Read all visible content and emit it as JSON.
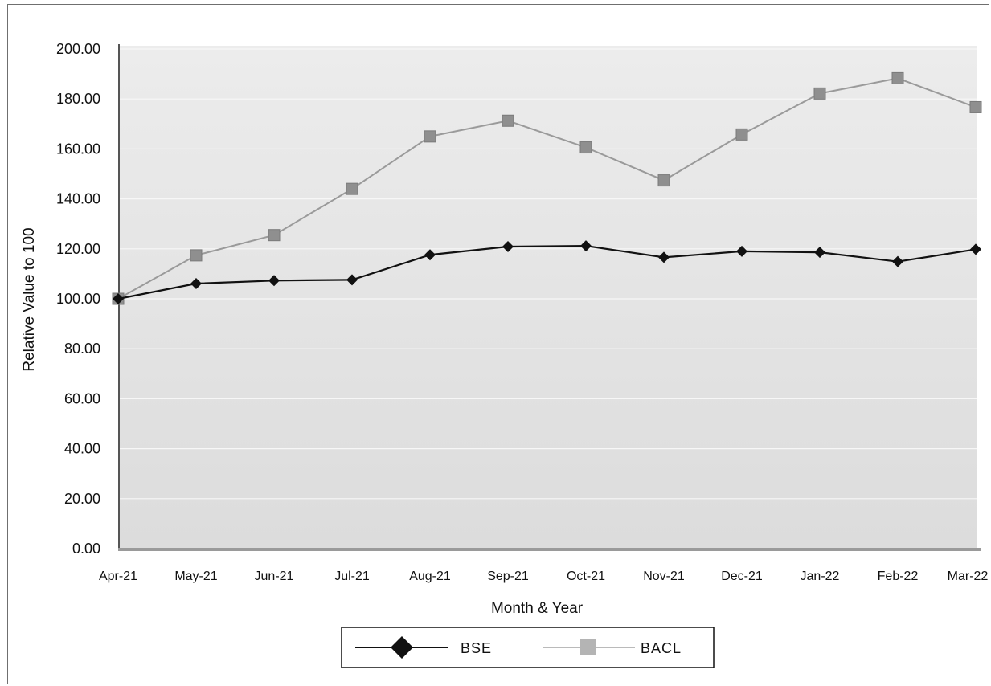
{
  "chart_data": {
    "type": "line",
    "title": "",
    "xlabel": "Month & Year",
    "ylabel": "Relative Value to 100",
    "categories": [
      "Apr-21",
      "May-21",
      "Jun-21",
      "Jul-21",
      "Aug-21",
      "Sep-21",
      "Oct-21",
      "Nov-21",
      "Dec-21",
      "Jan-22",
      "Feb-22",
      "Mar-22"
    ],
    "ylim": [
      0,
      200
    ],
    "yticks": [
      "0.00",
      "20.00",
      "40.00",
      "60.00",
      "80.00",
      "100.00",
      "120.00",
      "140.00",
      "160.00",
      "180.00",
      "200.00"
    ],
    "grid": true,
    "legend_position": "bottom",
    "series": [
      {
        "name": "BSE",
        "color": "#111111",
        "marker": "diamond",
        "values": [
          100.0,
          106.1,
          107.3,
          107.6,
          117.6,
          120.9,
          121.2,
          116.6,
          119.0,
          118.6,
          114.9,
          119.8
        ]
      },
      {
        "name": "BACL",
        "color": "#8c8c8c",
        "marker": "square",
        "values": [
          100.0,
          117.4,
          125.5,
          144.0,
          165.0,
          171.3,
          160.6,
          147.4,
          165.8,
          182.2,
          188.3,
          176.7
        ]
      }
    ]
  }
}
